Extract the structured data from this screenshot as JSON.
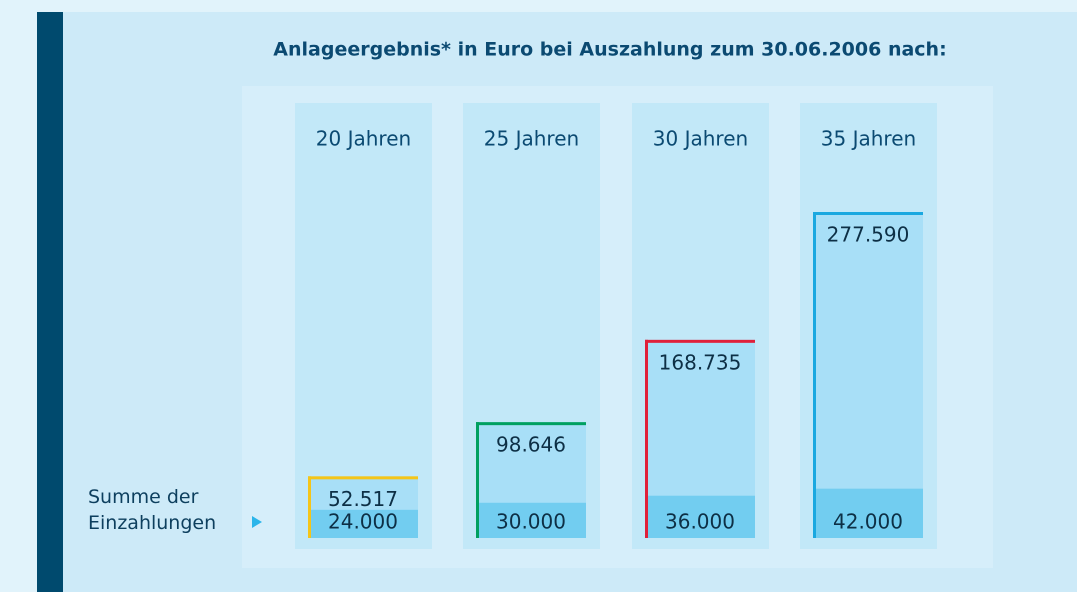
{
  "chart_data": {
    "type": "bar",
    "title": "Anlageergebnis* in Euro bei Auszahlung zum 30.06.2006 nach:",
    "categories": [
      "20 Jahren",
      "25 Jahren",
      "30 Jahren",
      "35 Jahren"
    ],
    "series": [
      {
        "values": [
          52517,
          98646,
          168735,
          277590
        ],
        "value_labels": [
          "52.517",
          "98.646",
          "168.735",
          "277.590"
        ],
        "color": "#a8dff7",
        "edge_colors": [
          "#f5c518",
          "#00a060",
          "#e0203a",
          "#1aa8e0"
        ]
      },
      {
        "name": "Summe der Einzahlungen",
        "values": [
          24000,
          30000,
          36000,
          42000
        ],
        "value_labels": [
          "24.000",
          "30.000",
          "36.000",
          "42.000"
        ],
        "color": "#72cdf0"
      }
    ]
  }
}
